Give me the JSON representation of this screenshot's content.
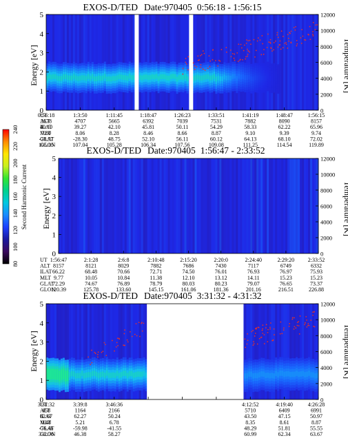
{
  "chart_data": [
    {
      "type": "heatmap",
      "title": "EXOS-D/TED",
      "date_label": "Date:970405",
      "time_range": "0:56:18 - 1:56:15",
      "ylabel_left": "Energy [eV]",
      "ylabel_right": "Temperature [K]",
      "ylim_energy": [
        0,
        5
      ],
      "yticks_energy": [
        "0",
        "1",
        "2",
        "3",
        "4",
        "5"
      ],
      "ylim_temp": [
        0,
        12000
      ],
      "yticks_temp": [
        "0",
        "2000",
        "4000",
        "6000",
        "8000",
        "10000",
        "12000"
      ],
      "data_gaps_fraction": [
        [
          0.325,
          0.34
        ],
        [
          0.525,
          0.54
        ]
      ],
      "band": {
        "center_ev": 1.7,
        "half_width_ev": 0.55,
        "fades_after_fraction": 0.62
      },
      "coverage": {
        "start": 0.0,
        "end": 1.0
      },
      "temperature_points": "scattered, rising from ~6000 K near 1:18 to ~10000 K near 1:48",
      "table_rows": [
        {
          "label": "UT",
          "values": [
            "0:56:18",
            "1:3:50",
            "1:11:45",
            "1:18:47",
            "1:26:23",
            "1:33:51",
            "1:41:19",
            "1:48:47",
            "1:56:15"
          ]
        },
        {
          "label": "ALT",
          "values": [
            "3678",
            "4707",
            "5665",
            "6392",
            "7039",
            "7531",
            "7882",
            "8090",
            "8157"
          ]
        },
        {
          "label": "ILAT",
          "values": [
            "40.10",
            "39.27",
            "42.10",
            "45.81",
            "50.11",
            "54.29",
            "58.33",
            "62.22",
            "65.96"
          ]
        },
        {
          "label": "MLT",
          "values": [
            "7.80",
            "8.06",
            "8.28",
            "8.46",
            "8.66",
            "8.87",
            "9.10",
            "9.39",
            "9.74"
          ]
        },
        {
          "label": "GLAT",
          "values": [
            "-28.97",
            "-28.30",
            "48.75",
            "52.10",
            "56.11",
            "60.12",
            "64.13",
            "68.10",
            "72.02"
          ]
        },
        {
          "label": "GLON",
          "values": [
            "105.15",
            "107.04",
            "105.28",
            "106.34",
            "107.56",
            "109.08",
            "111.25",
            "114.54",
            "119.89"
          ]
        }
      ]
    },
    {
      "type": "heatmap",
      "title": "EXOS-D/TED",
      "date_label": "Date:970405",
      "time_range": "1:56:47 - 2:33:52",
      "ylabel_left": "Energy [eV]",
      "ylabel_right": "Temperature [K]",
      "ylim_energy": [
        0,
        5
      ],
      "yticks_energy": [
        "0",
        "1",
        "2",
        "3",
        "4",
        "5"
      ],
      "ylim_temp": [
        0,
        12000
      ],
      "yticks_temp": [
        "0",
        "2000",
        "4000",
        "6000",
        "8000",
        "10000",
        "12000"
      ],
      "data_gaps_fraction": [],
      "band": null,
      "coverage": {
        "start": 0.0,
        "end": 1.0
      },
      "temperature_points": "none",
      "table_rows": [
        {
          "label": "UT",
          "values": [
            "1:56:47",
            "2:1:28",
            "2:6:8",
            "2:10:48",
            "2:15:20",
            "2:20:0",
            "2:24:40",
            "2:29:20",
            "2:33:52"
          ]
        },
        {
          "label": "ALT",
          "values": [
            "8157",
            "8121",
            "8029",
            "7882",
            "7686",
            "7430",
            "7117",
            "6749",
            "6332"
          ]
        },
        {
          "label": "ILAT",
          "values": [
            "66.22",
            "68.48",
            "70.66",
            "72.71",
            "74.50",
            "76.01",
            "76.93",
            "76.97",
            "75.93"
          ]
        },
        {
          "label": "MLT",
          "values": [
            "9.77",
            "10.05",
            "10.84",
            "11.38",
            "12.10",
            "13.12",
            "14.11",
            "15.23",
            "15.23"
          ]
        },
        {
          "label": "GLAT",
          "values": [
            "72.29",
            "74.67",
            "76.89",
            "78.79",
            "80.03",
            "80.23",
            "79.07",
            "76.65",
            "73.37"
          ]
        },
        {
          "label": "GLON",
          "values": [
            "120.39",
            "125.78",
            "133.60",
            "145.15",
            "161.06",
            "181.36",
            "201.16",
            "216.51",
            "226.88"
          ]
        }
      ]
    },
    {
      "type": "heatmap",
      "title": "EXOS-D/TED",
      "date_label": "Date:970405",
      "time_range": "3:31:32 - 4:31:32",
      "ylabel_left": "Energy [eV]",
      "ylabel_right": "Temperature [K]",
      "ylim_energy": [
        0,
        5
      ],
      "yticks_energy": [
        "0",
        "1",
        "2",
        "3",
        "4",
        "5"
      ],
      "ylim_temp": [
        0,
        12000
      ],
      "yticks_temp": [
        "0",
        "2000",
        "4000",
        "6000",
        "8000",
        "10000",
        "12000"
      ],
      "data_gaps_fraction": [
        [
          0.37,
          0.725
        ]
      ],
      "band": {
        "center_ev": 1.3,
        "half_width_ev": 0.6,
        "fades_after_fraction": 0.35
      },
      "coverage": {
        "start": 0.0,
        "end": 1.0
      },
      "temperature_points": "scattered, rising from ~5000 K to ~11000 K in both segments",
      "table_rows": [
        {
          "label": "UT",
          "values": [
            "3:31:32",
            "3:39:8",
            "3:46:36",
            "",
            "",
            "",
            "4:12:52",
            "4:19:40",
            "4:26:28"
          ]
        },
        {
          "label": "ALT",
          "values": [
            "458",
            "1164",
            "2166",
            "",
            "",
            "",
            "5710",
            "6409",
            "6991"
          ]
        },
        {
          "label": "ILAT",
          "values": [
            "62.67",
            "62.27",
            "50.24",
            "",
            "",
            "",
            "43.50",
            "47.15",
            "50.97"
          ]
        },
        {
          "label": "MLT",
          "values": [
            "0.48",
            "5.21",
            "6.78",
            "",
            "",
            "",
            "8.35",
            "8.61",
            "8.87"
          ]
        },
        {
          "label": "GLAT",
          "values": [
            "-76.46",
            "-59.98",
            "-41.55",
            "",
            "",
            "",
            "48.29",
            "51.81",
            "55.55"
          ]
        },
        {
          "label": "GLON",
          "values": [
            "332.76",
            "46.38",
            "58.27",
            "",
            "",
            "",
            "60.99",
            "62.34",
            "63.67"
          ]
        }
      ]
    }
  ],
  "colorbar": {
    "label": "Second Harmonic Current",
    "ticks": [
      "80",
      "100",
      "120",
      "140",
      "160",
      "180",
      "200",
      "220",
      "240"
    ],
    "range": [
      80,
      240
    ],
    "colors": [
      "#000000",
      "#3a0a5e",
      "#1a1aa0",
      "#1d40ff",
      "#1a8cff",
      "#00c8e0",
      "#00d28c",
      "#32e632",
      "#c8f01e",
      "#ffe600",
      "#ff8c00",
      "#ff0000"
    ]
  }
}
